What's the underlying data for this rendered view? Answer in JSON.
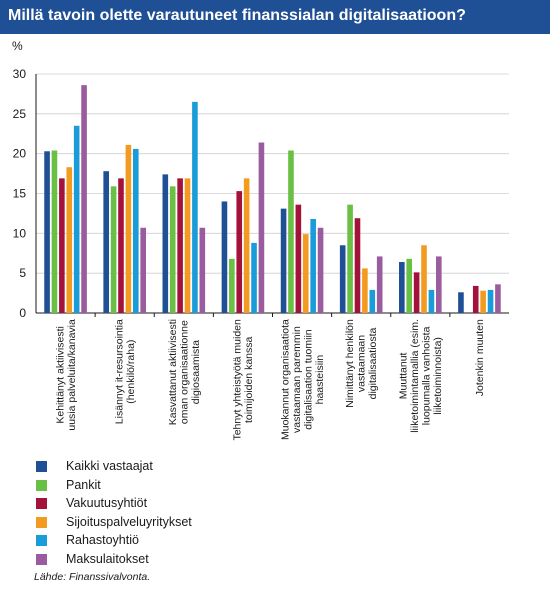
{
  "title": "Millä tavoin olette varautuneet finanssialan digitalisaatioon?",
  "source": "Lähde: Finanssivalvonta.",
  "colors": {
    "title_bar": "#1f4f95",
    "series": [
      "#1f4f95",
      "#6abf45",
      "#a3123a",
      "#f39a21",
      "#1a9cd8",
      "#9b5b9f"
    ]
  },
  "chart_data": {
    "type": "bar",
    "title": "Millä tavoin olette varautuneet finanssialan digitalisaatioon?",
    "ylabel": "%",
    "xlabel": "",
    "ylim": [
      0,
      30
    ],
    "yticks": [
      0,
      5,
      10,
      15,
      20,
      25,
      30
    ],
    "grid": true,
    "legend_position": "bottom-left",
    "categories": [
      [
        "Kehittänyt aktiivisesti",
        "uusia palveluita/kanavia"
      ],
      [
        "Lisännyt it-resursointia",
        "(henkilö/raha)"
      ],
      [
        "Kasvattanut aktiivisesti",
        "oman organisaationne",
        "digiosaamista"
      ],
      [
        "Tehnyt yhteistyötä muiden",
        "toimijoiden kanssa"
      ],
      [
        "Muokannut organisaatiota",
        "vastaamaan paremmin",
        "digitalisaation tuomiin",
        "haasteisiin"
      ],
      [
        "Nimittänyt henkilön",
        "vastaamaan",
        "digitalisaatiosta"
      ],
      [
        "Muuttanut",
        "liiketoimintamallia (esim.",
        "luopumalla vanhoista",
        "liiketoiminnoista)"
      ],
      [
        "Jotenkin muuten"
      ]
    ],
    "series": [
      {
        "name": "Kaikki vastaajat",
        "values": [
          20.3,
          17.8,
          17.4,
          14.0,
          13.1,
          8.5,
          6.4,
          2.6
        ]
      },
      {
        "name": "Pankit",
        "values": [
          20.4,
          15.9,
          15.9,
          6.8,
          20.4,
          13.6,
          6.8,
          0
        ]
      },
      {
        "name": "Vakuutusyhtiöt",
        "values": [
          16.9,
          16.9,
          16.9,
          15.3,
          13.6,
          11.9,
          5.1,
          3.4
        ]
      },
      {
        "name": "Sijoituspalveluyritykset",
        "values": [
          18.3,
          21.1,
          16.9,
          16.9,
          9.9,
          5.6,
          8.5,
          2.8
        ]
      },
      {
        "name": "Rahastoyhtiö",
        "values": [
          23.5,
          20.6,
          26.5,
          8.8,
          11.8,
          2.9,
          2.9,
          2.9
        ]
      },
      {
        "name": "Maksulaitokset",
        "values": [
          28.6,
          10.7,
          10.7,
          21.4,
          10.7,
          7.1,
          7.1,
          3.6
        ]
      }
    ]
  }
}
